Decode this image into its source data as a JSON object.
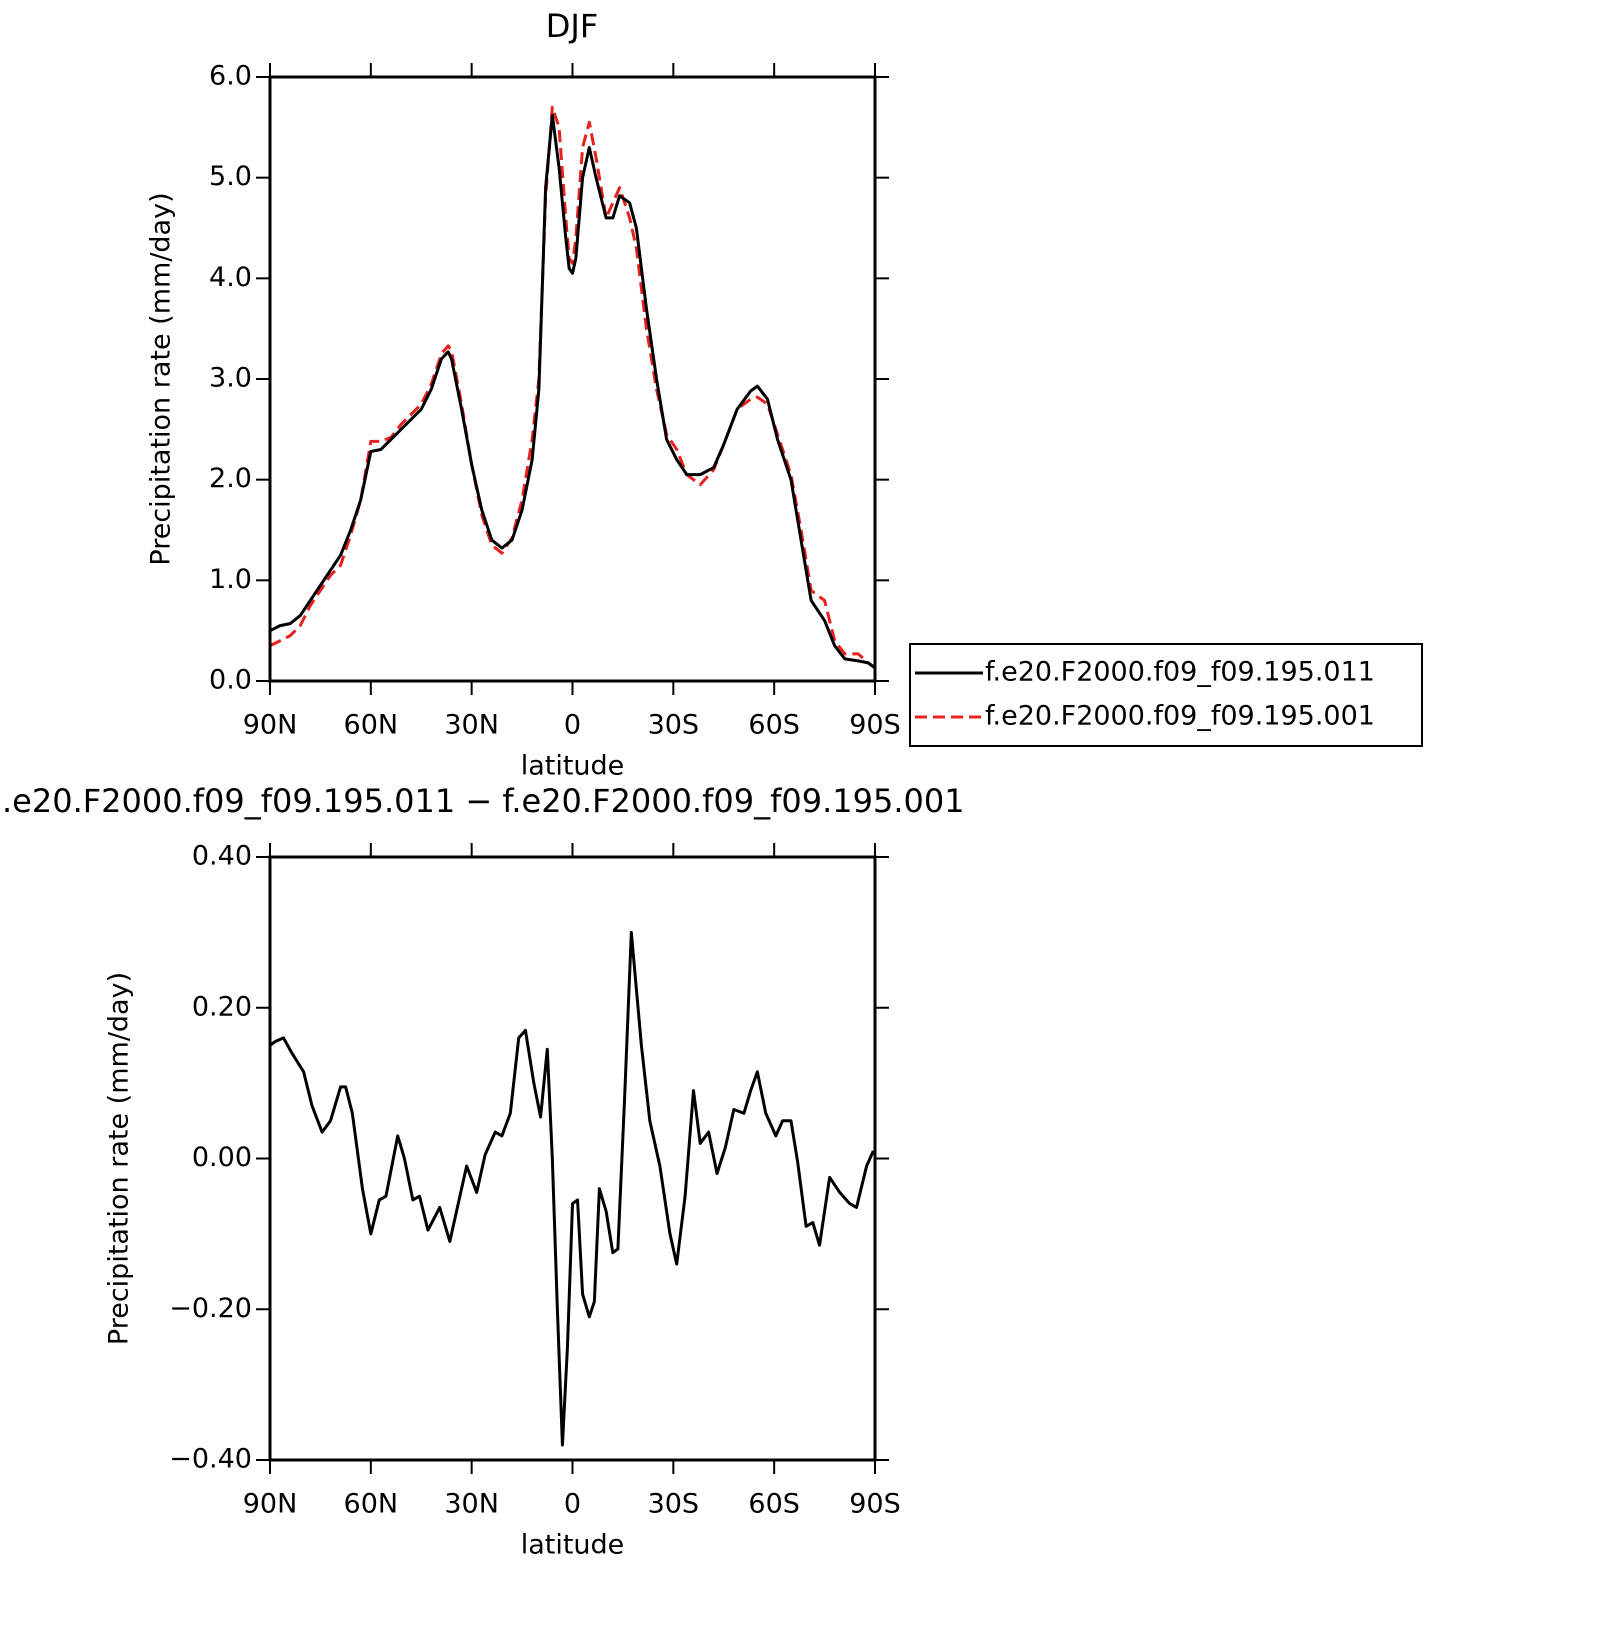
{
  "chart_data": [
    {
      "type": "line",
      "title": "DJF",
      "x_label": "latitude",
      "y_label": "Precipitation rate (mm/day)",
      "x": [
        90,
        87,
        84,
        81,
        78,
        75,
        72,
        69,
        66,
        63,
        60,
        57,
        54,
        51,
        48,
        45,
        42,
        39,
        37,
        36,
        33,
        30,
        27,
        24,
        21,
        18,
        15,
        12,
        10,
        8,
        6,
        4,
        2,
        1,
        0,
        -1,
        -3,
        -5,
        -7,
        -10,
        -12,
        -14,
        -17,
        -19,
        -22,
        -25,
        -28,
        -31,
        -34,
        -38,
        -42,
        -45,
        -49,
        -53,
        -55,
        -58,
        -61,
        -65,
        -68,
        -71,
        -75,
        -78,
        -81,
        -85,
        -88,
        -90
      ],
      "series": [
        {
          "name": "f.e20.F2000.f09_f09.195.001",
          "color": "#e8201e",
          "line_style": "dashed",
          "values": [
            0.35,
            0.4,
            0.45,
            0.55,
            0.75,
            0.9,
            1.05,
            1.15,
            1.45,
            1.8,
            2.38,
            2.38,
            2.42,
            2.55,
            2.65,
            2.75,
            2.95,
            3.25,
            3.33,
            3.28,
            2.75,
            2.15,
            1.65,
            1.35,
            1.27,
            1.42,
            1.8,
            2.4,
            3.0,
            4.8,
            5.7,
            5.5,
            4.6,
            4.2,
            4.15,
            4.4,
            5.3,
            5.55,
            5.2,
            4.6,
            4.75,
            4.9,
            4.6,
            4.3,
            3.5,
            2.9,
            2.45,
            2.3,
            2.05,
            1.95,
            2.1,
            2.35,
            2.7,
            2.8,
            2.82,
            2.75,
            2.45,
            2.05,
            1.5,
            0.9,
            0.8,
            0.4,
            0.27,
            0.27,
            0.18,
            0.13
          ]
        },
        {
          "name": "f.e20.F2000.f09_f09.195.011",
          "color": "#000000",
          "line_style": "solid",
          "values": [
            0.5,
            0.55,
            0.57,
            0.65,
            0.8,
            0.95,
            1.1,
            1.25,
            1.5,
            1.8,
            2.28,
            2.3,
            2.4,
            2.5,
            2.6,
            2.7,
            2.9,
            3.2,
            3.27,
            3.2,
            2.7,
            2.15,
            1.7,
            1.4,
            1.32,
            1.4,
            1.7,
            2.2,
            2.9,
            4.9,
            5.62,
            5.1,
            4.4,
            4.1,
            4.05,
            4.2,
            5.0,
            5.3,
            5.0,
            4.6,
            4.6,
            4.82,
            4.75,
            4.5,
            3.7,
            3.0,
            2.4,
            2.2,
            2.05,
            2.05,
            2.12,
            2.35,
            2.7,
            2.88,
            2.93,
            2.8,
            2.4,
            2.0,
            1.4,
            0.8,
            0.6,
            0.35,
            0.22,
            0.2,
            0.18,
            0.13
          ]
        }
      ],
      "xlim": [
        90,
        -90
      ],
      "xticks": [
        {
          "value": 90,
          "label": "90N"
        },
        {
          "value": 60,
          "label": "60N"
        },
        {
          "value": 30,
          "label": "30N"
        },
        0,
        {
          "value": -30,
          "label": "30S"
        },
        {
          "value": -60,
          "label": "60S"
        },
        {
          "value": -90,
          "label": "90S"
        }
      ],
      "ylim": [
        0,
        6
      ],
      "yticks": [
        {
          "value": 0,
          "label": "0.0"
        },
        {
          "value": 1,
          "label": "1.0"
        },
        {
          "value": 2,
          "label": "2.0"
        },
        {
          "value": 3,
          "label": "3.0"
        },
        {
          "value": 4,
          "label": "4.0"
        },
        {
          "value": 5,
          "label": "5.0"
        },
        {
          "value": 6,
          "label": "6.0"
        }
      ],
      "legend": "right"
    },
    {
      "type": "line",
      "title": ".e20.F2000.f09_f09.195.011 − f.e20.F2000.f09_f09.195.001",
      "x_label": "latitude",
      "y_label": "Precipitation rate (mm/day)",
      "x": [
        90,
        88.5,
        86,
        83.5,
        80,
        77.5,
        74.5,
        72,
        69,
        67.5,
        65.5,
        62.5,
        60,
        57.5,
        55.5,
        52,
        50,
        47.5,
        45.5,
        43,
        39.5,
        36.5,
        34,
        31.5,
        28.5,
        26,
        23,
        21,
        18.5,
        16,
        14,
        11.5,
        9.5,
        7.5,
        6,
        4.5,
        3,
        1.5,
        0,
        -1.5,
        -3,
        -5,
        -6.5,
        -8,
        -10,
        -12,
        -13.5,
        -15.5,
        -17.5,
        -19.5,
        -20.5,
        -23,
        -26,
        -29,
        -31,
        -33.5,
        -36,
        -38,
        -40.5,
        -43,
        -45.5,
        -48,
        -51,
        -53,
        -55,
        -57.5,
        -60.5,
        -62.5,
        -65,
        -67,
        -69.5,
        -71.5,
        -73.5,
        -76.5,
        -79.5,
        -82.5,
        -84.5,
        -87.5,
        -89.5
      ],
      "values": [
        0.15,
        0.155,
        0.16,
        0.14,
        0.115,
        0.07,
        0.035,
        0.05,
        0.095,
        0.095,
        0.06,
        -0.04,
        -0.1,
        -0.055,
        -0.05,
        0.03,
        0.0,
        -0.055,
        -0.05,
        -0.095,
        -0.065,
        -0.11,
        -0.06,
        -0.01,
        -0.045,
        0.005,
        0.035,
        0.03,
        0.06,
        0.16,
        0.17,
        0.1,
        0.055,
        0.145,
        0.0,
        -0.2,
        -0.38,
        -0.25,
        -0.06,
        -0.055,
        -0.18,
        -0.21,
        -0.19,
        -0.04,
        -0.07,
        -0.125,
        -0.12,
        0.08,
        0.3,
        0.2,
        0.15,
        0.05,
        -0.01,
        -0.1,
        -0.14,
        -0.05,
        0.09,
        0.02,
        0.035,
        -0.02,
        0.015,
        0.065,
        0.06,
        0.09,
        0.115,
        0.06,
        0.03,
        0.05,
        0.05,
        -0.005,
        -0.09,
        -0.085,
        -0.115,
        -0.025,
        -0.045,
        -0.06,
        -0.065,
        -0.01,
        0.01
      ],
      "color": "#000000",
      "xlim": [
        90,
        -90
      ],
      "xticks": [
        {
          "value": 90,
          "label": "90N"
        },
        {
          "value": 60,
          "label": "60N"
        },
        {
          "value": 30,
          "label": "30N"
        },
        0,
        {
          "value": -30,
          "label": "30S"
        },
        {
          "value": -60,
          "label": "60S"
        },
        {
          "value": -90,
          "label": "90S"
        }
      ],
      "ylim": [
        -0.4,
        0.4
      ],
      "yticks": [
        {
          "value": -0.4,
          "label": "−0.40"
        },
        {
          "value": -0.2,
          "label": "−0.20"
        },
        {
          "value": 0,
          "label": "0.00"
        },
        {
          "value": 0.2,
          "label": "0.20"
        },
        {
          "value": 0.4,
          "label": "0.40"
        }
      ]
    }
  ]
}
